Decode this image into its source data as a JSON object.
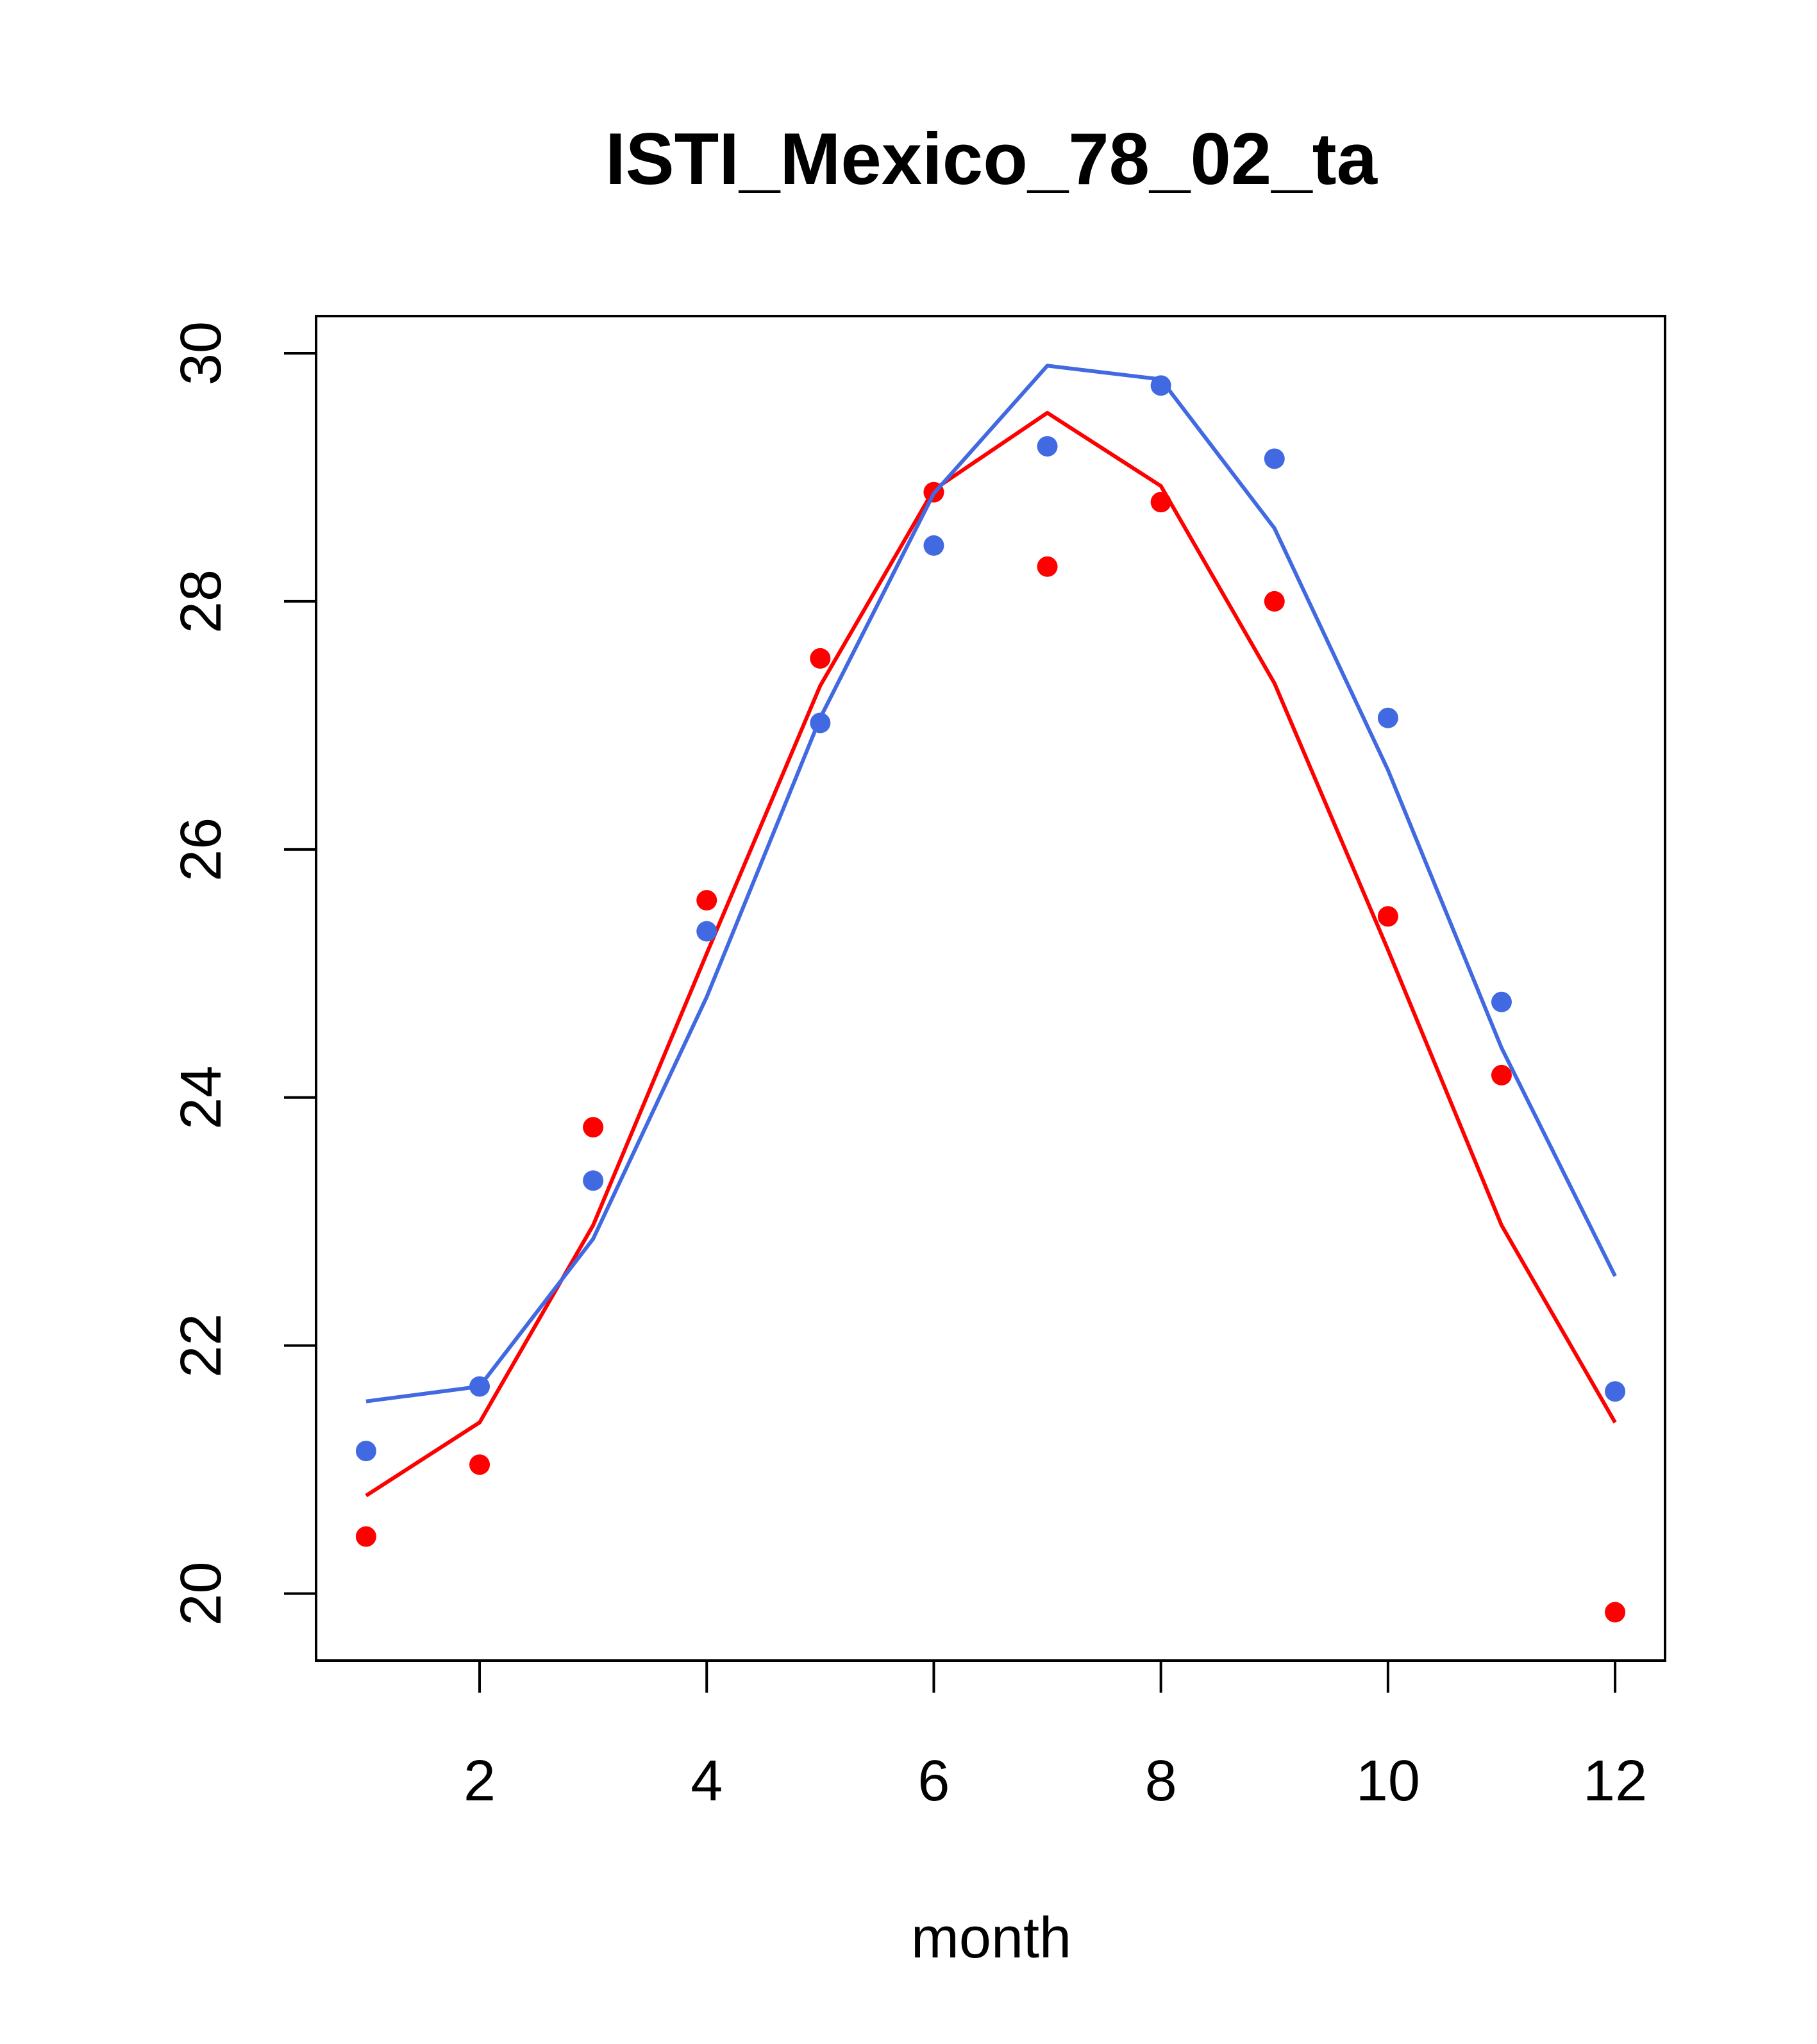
{
  "chart_data": {
    "type": "scatter",
    "title": "ISTI_Mexico_78_02_ta",
    "xlabel": "month",
    "ylabel": "",
    "xlim": [
      0.56,
      12.44
    ],
    "ylim": [
      19.46,
      30.3
    ],
    "xticks": [
      2,
      4,
      6,
      8,
      10,
      12
    ],
    "yticks": [
      20,
      22,
      24,
      26,
      28,
      30
    ],
    "grid": false,
    "legend": "none",
    "x": [
      1,
      2,
      3,
      4,
      5,
      6,
      7,
      8,
      9,
      10,
      11,
      12
    ],
    "series": [
      {
        "color": "#ff0000",
        "points": [
          20.46,
          21.04,
          23.76,
          25.59,
          27.54,
          28.88,
          28.28,
          28.8,
          28.0,
          25.46,
          24.18,
          19.85
        ],
        "line": [
          20.79,
          21.38,
          22.97,
          25.16,
          27.32,
          28.9,
          29.52,
          28.93,
          27.34,
          25.19,
          22.97,
          21.38
        ]
      },
      {
        "color": "#4169e1",
        "points": [
          21.15,
          21.67,
          23.33,
          25.34,
          27.02,
          28.45,
          29.25,
          29.74,
          29.15,
          27.06,
          24.77,
          21.63
        ],
        "line": [
          21.55,
          21.67,
          22.86,
          24.81,
          27.06,
          28.87,
          29.9,
          29.79,
          28.59,
          26.64,
          24.4,
          22.56
        ]
      }
    ]
  }
}
